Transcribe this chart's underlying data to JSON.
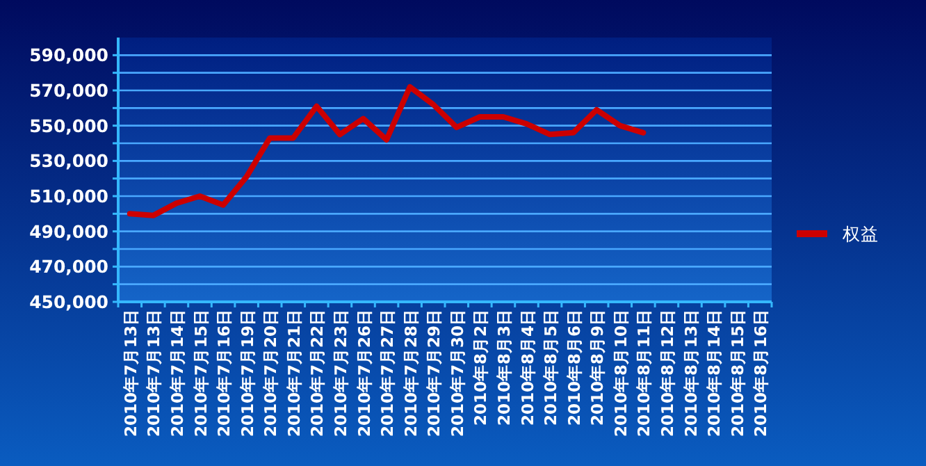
{
  "chart_data": {
    "type": "line",
    "categories": [
      "2010年7月13日",
      "2010年7月13日",
      "2010年7月14日",
      "2010年7月15日",
      "2010年7月16日",
      "2010年7月19日",
      "2010年7月20日",
      "2010年7月21日",
      "2010年7月22日",
      "2010年7月23日",
      "2010年7月26日",
      "2010年7月27日",
      "2010年7月28日",
      "2010年7月29日",
      "2010年7月30日",
      "2010年8月2日",
      "2010年8月3日",
      "2010年8月4日",
      "2010年8月5日",
      "2010年8月6日",
      "2010年8月9日",
      "2010年8月10日",
      "2010年8月11日",
      "2010年8月12日",
      "2010年8月13日",
      "2010年8月14日",
      "2010年8月15日",
      "2010年8月16日"
    ],
    "series": [
      {
        "name": "权益",
        "color": "#cc0000",
        "values": [
          500000,
          499000,
          506000,
          510000,
          505000,
          521000,
          543000,
          543000,
          561000,
          545000,
          554000,
          542000,
          572000,
          562000,
          549000,
          555000,
          555000,
          551000,
          545000,
          546000,
          559000,
          550000,
          546000,
          null,
          null,
          null,
          null,
          null
        ]
      }
    ],
    "ylim": [
      450000,
      600000
    ],
    "yticks": [
      {
        "value": 450000,
        "label": "450,000"
      },
      {
        "value": 460000,
        "label": null
      },
      {
        "value": 470000,
        "label": "470,000"
      },
      {
        "value": 480000,
        "label": null
      },
      {
        "value": 490000,
        "label": "490,000"
      },
      {
        "value": 500000,
        "label": null
      },
      {
        "value": 510000,
        "label": "510,000"
      },
      {
        "value": 520000,
        "label": null
      },
      {
        "value": 530000,
        "label": "530,000"
      },
      {
        "value": 540000,
        "label": null
      },
      {
        "value": 550000,
        "label": "550,000"
      },
      {
        "value": 560000,
        "label": null
      },
      {
        "value": 570000,
        "label": "570,000"
      },
      {
        "value": 580000,
        "label": null
      },
      {
        "value": 590000,
        "label": "590,000"
      }
    ],
    "grid": "y",
    "legend": "right",
    "line_style": "solid"
  }
}
